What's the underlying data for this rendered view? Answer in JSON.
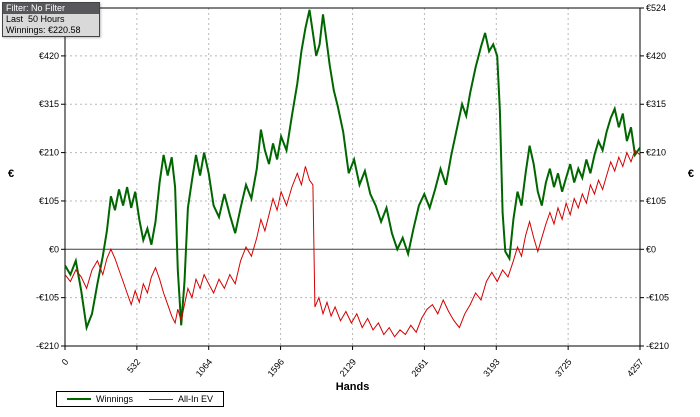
{
  "info_box": {
    "filter": "Filter: No Filter",
    "duration": "Last  50 Hours",
    "winnings": "Winnings: €220.58"
  },
  "axes": {
    "y_title_left": "€",
    "y_title_right": "€",
    "x_title": "Hands"
  },
  "legend": [
    {
      "label": "Winnings",
      "color": "#006600",
      "swatch_style": "width:24px;height:2px;background:#006600"
    },
    {
      "label": "All-In EV",
      "color": "#d40000",
      "swatch_style": "width:24px;height:1px;background:#d40000"
    }
  ],
  "colors": {
    "grid": "#b8b8b8",
    "axis": "#000000",
    "zero_line": "#404040",
    "background": "#ffffff"
  },
  "chart_data": {
    "type": "line",
    "title": "",
    "xlabel": "Hands",
    "ylabel": "€",
    "xlim": [
      0,
      4257
    ],
    "ylim": [
      -210,
      524
    ],
    "grid": true,
    "legend_position": "bottom-left",
    "x_ticks": [
      {
        "v": 0,
        "label": "0"
      },
      {
        "v": 532,
        "label": "532"
      },
      {
        "v": 1064,
        "label": "1064"
      },
      {
        "v": 1596,
        "label": "1596"
      },
      {
        "v": 2129,
        "label": "2129"
      },
      {
        "v": 2661,
        "label": "2661"
      },
      {
        "v": 3193,
        "label": "3193"
      },
      {
        "v": 3725,
        "label": "3725"
      },
      {
        "v": 4257,
        "label": "4257"
      }
    ],
    "y_ticks": [
      {
        "v": 524,
        "label": "€524"
      },
      {
        "v": 420,
        "label": "€420"
      },
      {
        "v": 315,
        "label": "€315"
      },
      {
        "v": 210,
        "label": "€210"
      },
      {
        "v": 105,
        "label": "€105"
      },
      {
        "v": 0,
        "label": "€0"
      },
      {
        "v": -105,
        "label": "-€105"
      },
      {
        "v": -210,
        "label": "-€210"
      }
    ],
    "series": [
      {
        "name": "Winnings",
        "color": "#006600",
        "width": 2,
        "points": [
          [
            0,
            -35
          ],
          [
            40,
            -55
          ],
          [
            80,
            -25
          ],
          [
            120,
            -90
          ],
          [
            160,
            -170
          ],
          [
            200,
            -140
          ],
          [
            240,
            -75
          ],
          [
            280,
            -15
          ],
          [
            310,
            40
          ],
          [
            340,
            115
          ],
          [
            370,
            85
          ],
          [
            400,
            130
          ],
          [
            430,
            95
          ],
          [
            460,
            135
          ],
          [
            490,
            90
          ],
          [
            520,
            125
          ],
          [
            550,
            65
          ],
          [
            580,
            20
          ],
          [
            610,
            45
          ],
          [
            640,
            10
          ],
          [
            670,
            60
          ],
          [
            700,
            145
          ],
          [
            730,
            205
          ],
          [
            760,
            160
          ],
          [
            790,
            200
          ],
          [
            815,
            135
          ],
          [
            835,
            -45
          ],
          [
            860,
            -165
          ],
          [
            885,
            -70
          ],
          [
            910,
            90
          ],
          [
            940,
            150
          ],
          [
            970,
            205
          ],
          [
            1000,
            160
          ],
          [
            1030,
            210
          ],
          [
            1064,
            165
          ],
          [
            1100,
            95
          ],
          [
            1140,
            70
          ],
          [
            1180,
            120
          ],
          [
            1220,
            75
          ],
          [
            1260,
            35
          ],
          [
            1300,
            90
          ],
          [
            1340,
            140
          ],
          [
            1380,
            110
          ],
          [
            1420,
            175
          ],
          [
            1450,
            260
          ],
          [
            1480,
            215
          ],
          [
            1510,
            185
          ],
          [
            1540,
            230
          ],
          [
            1570,
            195
          ],
          [
            1600,
            245
          ],
          [
            1640,
            215
          ],
          [
            1680,
            290
          ],
          [
            1720,
            360
          ],
          [
            1750,
            430
          ],
          [
            1780,
            480
          ],
          [
            1810,
            520
          ],
          [
            1835,
            470
          ],
          [
            1860,
            420
          ],
          [
            1885,
            445
          ],
          [
            1910,
            510
          ],
          [
            1935,
            455
          ],
          [
            1960,
            400
          ],
          [
            1990,
            345
          ],
          [
            2020,
            310
          ],
          [
            2060,
            255
          ],
          [
            2100,
            165
          ],
          [
            2140,
            195
          ],
          [
            2180,
            140
          ],
          [
            2220,
            170
          ],
          [
            2260,
            120
          ],
          [
            2300,
            95
          ],
          [
            2340,
            60
          ],
          [
            2380,
            90
          ],
          [
            2420,
            35
          ],
          [
            2460,
            0
          ],
          [
            2500,
            25
          ],
          [
            2540,
            -10
          ],
          [
            2580,
            45
          ],
          [
            2620,
            95
          ],
          [
            2660,
            120
          ],
          [
            2700,
            90
          ],
          [
            2740,
            130
          ],
          [
            2780,
            175
          ],
          [
            2820,
            140
          ],
          [
            2860,
            205
          ],
          [
            2900,
            260
          ],
          [
            2940,
            315
          ],
          [
            2970,
            290
          ],
          [
            3000,
            340
          ],
          [
            3040,
            395
          ],
          [
            3080,
            440
          ],
          [
            3110,
            470
          ],
          [
            3140,
            430
          ],
          [
            3170,
            445
          ],
          [
            3200,
            420
          ],
          [
            3220,
            300
          ],
          [
            3240,
            80
          ],
          [
            3260,
            -5
          ],
          [
            3290,
            -20
          ],
          [
            3320,
            65
          ],
          [
            3350,
            125
          ],
          [
            3380,
            95
          ],
          [
            3410,
            165
          ],
          [
            3440,
            225
          ],
          [
            3470,
            185
          ],
          [
            3500,
            125
          ],
          [
            3530,
            95
          ],
          [
            3560,
            145
          ],
          [
            3590,
            175
          ],
          [
            3620,
            135
          ],
          [
            3650,
            165
          ],
          [
            3680,
            125
          ],
          [
            3710,
            155
          ],
          [
            3740,
            185
          ],
          [
            3770,
            145
          ],
          [
            3800,
            175
          ],
          [
            3830,
            155
          ],
          [
            3860,
            195
          ],
          [
            3890,
            165
          ],
          [
            3920,
            205
          ],
          [
            3950,
            235
          ],
          [
            3980,
            215
          ],
          [
            4010,
            255
          ],
          [
            4040,
            285
          ],
          [
            4070,
            305
          ],
          [
            4100,
            265
          ],
          [
            4130,
            295
          ],
          [
            4160,
            235
          ],
          [
            4190,
            265
          ],
          [
            4220,
            205
          ],
          [
            4257,
            221
          ]
        ]
      },
      {
        "name": "All-In EV",
        "color": "#d40000",
        "width": 1,
        "points": [
          [
            0,
            -55
          ],
          [
            40,
            -70
          ],
          [
            80,
            -45
          ],
          [
            120,
            -60
          ],
          [
            160,
            -85
          ],
          [
            200,
            -45
          ],
          [
            240,
            -25
          ],
          [
            280,
            -55
          ],
          [
            310,
            -20
          ],
          [
            340,
            0
          ],
          [
            370,
            -20
          ],
          [
            400,
            -45
          ],
          [
            430,
            -70
          ],
          [
            460,
            -95
          ],
          [
            490,
            -120
          ],
          [
            520,
            -90
          ],
          [
            550,
            -115
          ],
          [
            580,
            -75
          ],
          [
            610,
            -95
          ],
          [
            640,
            -60
          ],
          [
            670,
            -40
          ],
          [
            700,
            -65
          ],
          [
            730,
            -95
          ],
          [
            760,
            -120
          ],
          [
            790,
            -145
          ],
          [
            815,
            -160
          ],
          [
            835,
            -130
          ],
          [
            860,
            -155
          ],
          [
            885,
            -120
          ],
          [
            910,
            -85
          ],
          [
            940,
            -105
          ],
          [
            970,
            -65
          ],
          [
            1000,
            -85
          ],
          [
            1030,
            -55
          ],
          [
            1064,
            -75
          ],
          [
            1100,
            -95
          ],
          [
            1140,
            -65
          ],
          [
            1180,
            -85
          ],
          [
            1220,
            -55
          ],
          [
            1260,
            -75
          ],
          [
            1300,
            -25
          ],
          [
            1340,
            5
          ],
          [
            1380,
            -15
          ],
          [
            1420,
            25
          ],
          [
            1450,
            65
          ],
          [
            1480,
            40
          ],
          [
            1510,
            75
          ],
          [
            1540,
            110
          ],
          [
            1570,
            85
          ],
          [
            1600,
            125
          ],
          [
            1640,
            95
          ],
          [
            1680,
            135
          ],
          [
            1720,
            165
          ],
          [
            1750,
            140
          ],
          [
            1780,
            180
          ],
          [
            1810,
            150
          ],
          [
            1835,
            140
          ],
          [
            1850,
            -125
          ],
          [
            1880,
            -105
          ],
          [
            1910,
            -140
          ],
          [
            1940,
            -115
          ],
          [
            1970,
            -145
          ],
          [
            2000,
            -125
          ],
          [
            2040,
            -155
          ],
          [
            2080,
            -135
          ],
          [
            2120,
            -160
          ],
          [
            2160,
            -140
          ],
          [
            2200,
            -170
          ],
          [
            2240,
            -150
          ],
          [
            2280,
            -175
          ],
          [
            2320,
            -160
          ],
          [
            2360,
            -185
          ],
          [
            2400,
            -170
          ],
          [
            2440,
            -190
          ],
          [
            2480,
            -175
          ],
          [
            2520,
            -185
          ],
          [
            2560,
            -165
          ],
          [
            2600,
            -180
          ],
          [
            2640,
            -150
          ],
          [
            2680,
            -130
          ],
          [
            2720,
            -120
          ],
          [
            2760,
            -140
          ],
          [
            2800,
            -110
          ],
          [
            2840,
            -135
          ],
          [
            2880,
            -155
          ],
          [
            2920,
            -170
          ],
          [
            2960,
            -140
          ],
          [
            3000,
            -120
          ],
          [
            3040,
            -95
          ],
          [
            3080,
            -110
          ],
          [
            3120,
            -70
          ],
          [
            3160,
            -50
          ],
          [
            3200,
            -70
          ],
          [
            3240,
            -45
          ],
          [
            3280,
            -60
          ],
          [
            3320,
            -25
          ],
          [
            3350,
            5
          ],
          [
            3380,
            -15
          ],
          [
            3410,
            30
          ],
          [
            3440,
            60
          ],
          [
            3470,
            25
          ],
          [
            3500,
            -5
          ],
          [
            3530,
            25
          ],
          [
            3560,
            55
          ],
          [
            3590,
            80
          ],
          [
            3620,
            55
          ],
          [
            3650,
            90
          ],
          [
            3680,
            65
          ],
          [
            3710,
            100
          ],
          [
            3740,
            75
          ],
          [
            3770,
            110
          ],
          [
            3800,
            90
          ],
          [
            3830,
            120
          ],
          [
            3860,
            100
          ],
          [
            3890,
            140
          ],
          [
            3920,
            120
          ],
          [
            3950,
            150
          ],
          [
            3980,
            130
          ],
          [
            4010,
            160
          ],
          [
            4040,
            190
          ],
          [
            4070,
            170
          ],
          [
            4100,
            200
          ],
          [
            4130,
            180
          ],
          [
            4160,
            210
          ],
          [
            4190,
            190
          ],
          [
            4220,
            215
          ],
          [
            4257,
            205
          ]
        ]
      }
    ]
  }
}
